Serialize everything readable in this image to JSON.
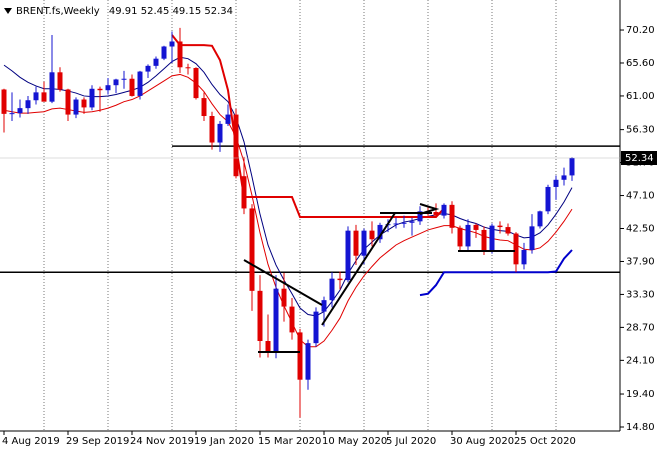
{
  "chart_data": {
    "type": "candlestick",
    "symbol": "BRENT.fs,Weekly",
    "categories": [
      "4 Aug 2019",
      null,
      null,
      null,
      null,
      null,
      null,
      null,
      "29 Sep 2019",
      null,
      null,
      null,
      null,
      null,
      null,
      null,
      "24 Nov 2019",
      null,
      null,
      null,
      null,
      null,
      null,
      null,
      "19 Jan 2020",
      null,
      null,
      null,
      null,
      null,
      null,
      null,
      "15 Mar 2020",
      null,
      null,
      null,
      null,
      null,
      null,
      null,
      "10 May 2020",
      null,
      null,
      null,
      null,
      null,
      null,
      null,
      "5 Jul 2020",
      null,
      null,
      null,
      null,
      null,
      null,
      null,
      "30 Aug 2020",
      null,
      null,
      null,
      null,
      null,
      null,
      null,
      "25 Oct 2020",
      null,
      null,
      null,
      null,
      null,
      null,
      null
    ],
    "open": [
      61.9,
      58.5,
      58.6,
      59.3,
      60.4,
      61.5,
      60.2,
      64.3,
      61.9,
      58.4,
      60.5,
      59.4,
      62.0,
      61.8,
      62.5,
      63.3,
      63.4,
      61.0,
      64.4,
      65.2,
      66.2,
      67.9,
      68.6,
      65.0,
      64.9,
      60.7,
      58.2,
      54.5,
      57.1,
      58.4,
      49.8,
      45.3,
      33.8,
      26.8,
      25.3,
      34.1,
      31.6,
      28.0,
      21.4,
      26.5,
      30.9,
      32.5,
      35.5,
      35.3,
      42.2,
      38.7,
      42.2,
      41.0,
      43.0,
      43.1,
      43.2,
      43.3,
      43.5,
      44.9,
      44.8,
      44.3,
      45.8,
      42.6,
      40.0,
      43.0,
      42.3,
      39.3,
      42.9,
      42.7,
      41.8,
      37.5,
      39.5,
      42.8,
      44.9,
      48.3,
      49.3,
      49.91
    ],
    "high": [
      62.0,
      61.5,
      60.5,
      61.0,
      62.3,
      63.0,
      69.5,
      65.0,
      62.0,
      60.8,
      60.8,
      62.5,
      62.3,
      63.5,
      63.4,
      64.5,
      64.0,
      64.5,
      65.4,
      66.5,
      68.0,
      70.0,
      70.5,
      65.5,
      65.0,
      61.5,
      58.8,
      57.5,
      59.8,
      59.2,
      52.5,
      45.9,
      36.0,
      30.5,
      36.0,
      36.3,
      32.8,
      28.5,
      27.0,
      31.5,
      33.0,
      36.4,
      36.5,
      42.8,
      43.0,
      42.5,
      43.5,
      43.3,
      43.8,
      44.0,
      44.3,
      44.0,
      45.6,
      45.5,
      46.0,
      46.0,
      46.3,
      42.9,
      43.8,
      43.2,
      42.8,
      43.2,
      43.5,
      43.2,
      42.0,
      40.5,
      44.5,
      45.0,
      48.6,
      49.9,
      51.0,
      52.45
    ],
    "low": [
      55.9,
      57.5,
      58.0,
      58.5,
      59.8,
      60.5,
      60.0,
      61.6,
      57.5,
      57.9,
      58.5,
      59.0,
      58.8,
      61.2,
      61.4,
      62.0,
      60.9,
      60.5,
      63.5,
      64.8,
      66.0,
      65.6,
      64.2,
      64.0,
      60.5,
      57.5,
      53.5,
      53.2,
      56.8,
      49.5,
      44.5,
      31.0,
      24.5,
      24.5,
      24.4,
      29.5,
      27.0,
      16.1,
      20.0,
      26.0,
      28.8,
      31.5,
      34.0,
      35.0,
      37.4,
      37.5,
      40.0,
      40.5,
      42.0,
      42.5,
      42.6,
      41.5,
      43.0,
      44.3,
      44.2,
      43.9,
      41.8,
      39.5,
      39.5,
      41.2,
      38.8,
      39.0,
      41.8,
      41.5,
      36.4,
      36.8,
      39.0,
      42.5,
      44.5,
      46.5,
      48.5,
      49.15
    ],
    "close": [
      58.5,
      58.6,
      59.3,
      60.4,
      61.5,
      60.2,
      64.3,
      61.9,
      58.4,
      60.5,
      59.4,
      62.0,
      61.8,
      62.5,
      63.3,
      63.4,
      61.0,
      64.4,
      65.2,
      66.2,
      67.9,
      68.6,
      65.0,
      64.9,
      60.7,
      58.2,
      54.5,
      57.1,
      58.4,
      49.8,
      45.3,
      33.8,
      26.8,
      25.3,
      34.1,
      31.6,
      28.0,
      21.4,
      26.5,
      30.9,
      32.5,
      35.5,
      35.3,
      42.2,
      38.7,
      42.2,
      41.0,
      43.0,
      43.1,
      43.2,
      43.3,
      43.5,
      44.9,
      44.8,
      44.3,
      45.8,
      42.6,
      40.0,
      43.0,
      42.3,
      39.3,
      42.9,
      42.7,
      41.8,
      37.5,
      39.5,
      42.8,
      44.9,
      48.3,
      49.3,
      49.91,
      52.34
    ],
    "up_color": "#1414d2",
    "down_color": "#e00000",
    "indicators": [
      {
        "color": "#000080",
        "width": 1,
        "values": [
          65.3,
          64.5,
          63.6,
          62.9,
          62.4,
          62.0,
          62.0,
          61.9,
          61.7,
          61.4,
          61.0,
          60.9,
          60.9,
          61.0,
          61.2,
          61.5,
          61.8,
          62.2,
          62.9,
          63.8,
          64.8,
          65.8,
          66.4,
          66.2,
          65.5,
          64.3,
          62.6,
          61.2,
          60.2,
          58.0,
          54.6,
          49.7,
          44.5,
          40.2,
          37.4,
          35.3,
          33.4,
          31.4,
          30.5,
          30.3,
          30.9,
          32.3,
          33.9,
          36.2,
          38.0,
          39.6,
          40.6,
          41.6,
          42.3,
          43.0,
          43.4,
          43.6,
          43.9,
          44.2,
          44.4,
          44.6,
          44.4,
          43.9,
          43.5,
          43.2,
          42.7,
          42.4,
          42.2,
          42.1,
          41.6,
          41.2,
          41.3,
          41.9,
          43.0,
          44.5,
          46.2,
          48.2
        ]
      },
      {
        "color": "#e00000",
        "width": 1,
        "values": [
          59.0,
          58.8,
          58.6,
          58.6,
          58.7,
          58.8,
          59.2,
          59.3,
          59.1,
          58.9,
          58.7,
          58.8,
          59.0,
          59.3,
          59.7,
          60.2,
          60.5,
          61.0,
          61.7,
          62.4,
          63.1,
          63.8,
          64.0,
          63.6,
          62.8,
          61.6,
          59.9,
          58.4,
          57.4,
          55.3,
          51.8,
          47.1,
          41.9,
          37.5,
          34.3,
          31.7,
          29.4,
          27.0,
          26.0,
          26.0,
          26.8,
          28.3,
          30.0,
          32.4,
          34.3,
          35.9,
          37.2,
          38.4,
          39.3,
          40.2,
          40.8,
          41.3,
          41.8,
          42.3,
          42.6,
          42.9,
          42.9,
          42.5,
          42.2,
          41.9,
          41.4,
          41.1,
          40.9,
          40.8,
          40.2,
          39.6,
          39.5,
          39.8,
          40.7,
          42.0,
          43.5,
          45.2
        ]
      },
      {
        "color": "#e00000",
        "width": 2,
        "values": [
          null,
          null,
          null,
          null,
          null,
          null,
          null,
          null,
          null,
          null,
          null,
          null,
          null,
          null,
          null,
          null,
          null,
          null,
          null,
          null,
          null,
          69.5,
          68.1,
          68.1,
          68.1,
          68.1,
          68.0,
          66.0,
          61.8,
          54.0,
          46.9,
          46.9,
          46.9,
          46.9,
          46.9,
          46.9,
          46.9,
          44.1,
          44.1,
          44.1,
          44.1,
          44.1,
          44.1,
          44.1,
          44.1,
          44.1,
          44.1,
          44.1,
          44.1,
          44.1,
          44.1,
          44.1,
          44.1,
          44.1,
          44.1,
          45.3,
          null,
          null,
          null,
          null,
          null,
          null,
          null,
          null,
          null,
          null,
          null,
          null,
          null,
          null,
          null,
          null
        ]
      },
      {
        "color": "#0000cc",
        "width": 2,
        "values": [
          null,
          null,
          null,
          null,
          null,
          null,
          null,
          null,
          null,
          null,
          null,
          null,
          null,
          null,
          null,
          null,
          null,
          null,
          null,
          null,
          null,
          null,
          null,
          null,
          null,
          null,
          null,
          null,
          null,
          null,
          null,
          null,
          null,
          null,
          null,
          null,
          null,
          null,
          null,
          null,
          null,
          null,
          null,
          null,
          null,
          null,
          null,
          null,
          null,
          null,
          null,
          null,
          33.2,
          33.4,
          34.6,
          36.4,
          36.4,
          36.4,
          36.4,
          36.4,
          36.4,
          36.4,
          36.4,
          36.4,
          36.4,
          36.4,
          36.4,
          36.4,
          36.4,
          36.5,
          38.3,
          39.5
        ]
      }
    ],
    "hlines": [
      54.0,
      36.4
    ],
    "ylim": [
      14.24,
      74.39
    ],
    "yticks": [
      {
        "value": 70.2,
        "label": "70.20"
      },
      {
        "value": 65.6,
        "label": "65.60"
      },
      {
        "value": 61.0,
        "label": "61.00"
      },
      {
        "value": 56.3,
        "label": "56.30"
      },
      {
        "value": 51.7,
        "label": "51.70"
      },
      {
        "value": 47.1,
        "label": "47.10"
      },
      {
        "value": 42.5,
        "label": "42.50"
      },
      {
        "value": 37.9,
        "label": "37.90"
      },
      {
        "value": 33.3,
        "label": "33.30"
      },
      {
        "value": 28.7,
        "label": "28.70"
      },
      {
        "value": 24.1,
        "label": "24.10"
      },
      {
        "value": 19.4,
        "label": "19.40"
      },
      {
        "value": 14.8,
        "label": "14.80"
      }
    ]
  }
}
